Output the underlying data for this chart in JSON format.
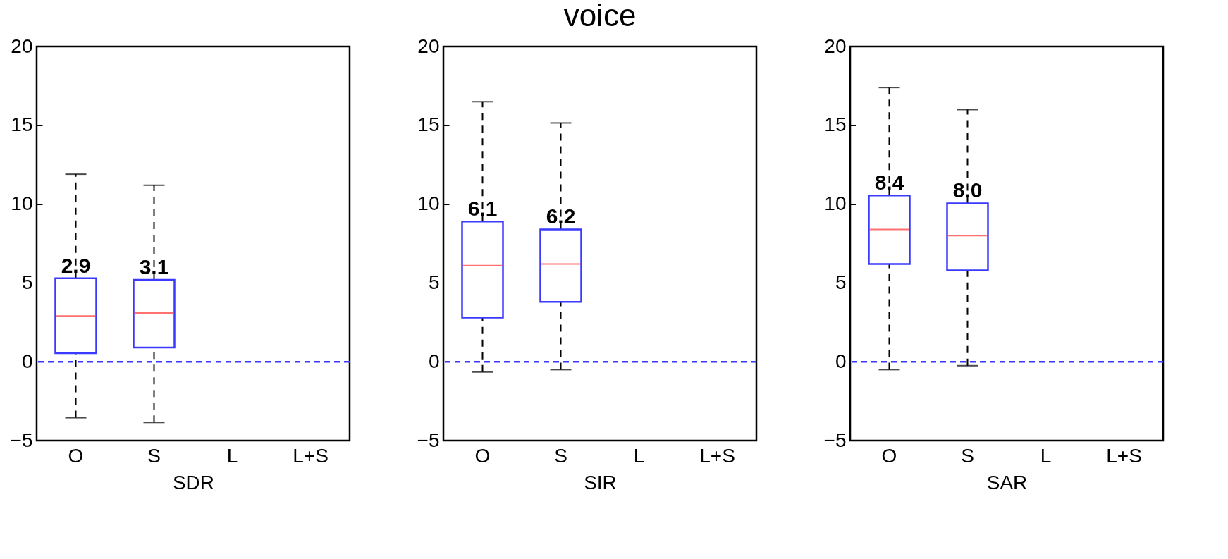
{
  "chart_data": [
    {
      "type": "box",
      "categories": [
        "O",
        "S",
        "L",
        "L+S"
      ],
      "xlabel": "SDR",
      "ylim": [
        -5,
        20
      ],
      "yticks": [
        -5,
        0,
        5,
        10,
        15,
        20
      ],
      "boxes": [
        {
          "low": -3.55,
          "q1": 0.55,
          "median": 2.9,
          "q3": 5.3,
          "high": 11.9
        },
        {
          "low": -3.85,
          "q1": 0.9,
          "median": 3.1,
          "q3": 5.2,
          "high": 11.2
        },
        null,
        null
      ],
      "annotations": [
        {
          "text": "2.9",
          "x": "O",
          "y": 5.3
        },
        {
          "text": "3.1",
          "x": "S",
          "y": 5.2
        }
      ],
      "ref_lines": [
        {
          "axis": "y",
          "value": 0,
          "color": "#3a3aff",
          "line_style": "dashed"
        }
      ]
    },
    {
      "type": "box",
      "title": "voice",
      "categories": [
        "O",
        "S",
        "L",
        "L+S"
      ],
      "xlabel": "SIR",
      "ylim": [
        -5,
        20
      ],
      "yticks": [
        -5,
        0,
        5,
        10,
        15,
        20
      ],
      "boxes": [
        {
          "low": -0.65,
          "q1": 2.8,
          "median": 6.1,
          "q3": 8.9,
          "high": 16.5
        },
        {
          "low": -0.5,
          "q1": 3.8,
          "median": 6.2,
          "q3": 8.4,
          "high": 15.15
        },
        null,
        null
      ],
      "annotations": [
        {
          "text": "6.1",
          "x": "O",
          "y": 8.9
        },
        {
          "text": "6.2",
          "x": "S",
          "y": 8.4
        }
      ],
      "ref_lines": [
        {
          "axis": "y",
          "value": 0,
          "color": "#3a3aff",
          "line_style": "dashed"
        }
      ]
    },
    {
      "type": "box",
      "categories": [
        "O",
        "S",
        "L",
        "L+S"
      ],
      "xlabel": "SAR",
      "ylim": [
        -5,
        20
      ],
      "yticks": [
        -5,
        0,
        5,
        10,
        15,
        20
      ],
      "boxes": [
        {
          "low": -0.5,
          "q1": 6.2,
          "median": 8.4,
          "q3": 10.55,
          "high": 17.4
        },
        {
          "low": -0.25,
          "q1": 5.8,
          "median": 8.0,
          "q3": 10.05,
          "high": 16.0
        },
        null,
        null
      ],
      "annotations": [
        {
          "text": "8.4",
          "x": "O",
          "y": 10.55
        },
        {
          "text": "8.0",
          "x": "S",
          "y": 10.05
        }
      ],
      "ref_lines": [
        {
          "axis": "y",
          "value": 0,
          "color": "#3a3aff",
          "line_style": "dashed"
        }
      ]
    }
  ]
}
